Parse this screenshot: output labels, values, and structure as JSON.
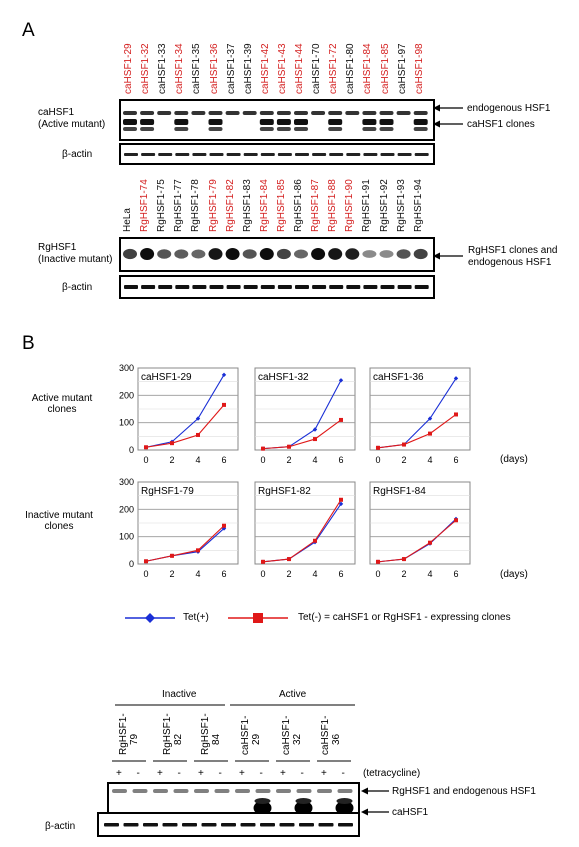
{
  "panel_a": {
    "letter": "A",
    "ca_lanes": [
      {
        "label": "caHSF1-29",
        "red": true
      },
      {
        "label": "caHSF1-32",
        "red": true
      },
      {
        "label": "caHSF1-33",
        "red": false
      },
      {
        "label": "caHSF1-34",
        "red": true
      },
      {
        "label": "caHSF1-35",
        "red": false
      },
      {
        "label": "caHSF1-36",
        "red": true
      },
      {
        "label": "caHSF1-37",
        "red": false
      },
      {
        "label": "caHSF1-39",
        "red": false
      },
      {
        "label": "caHSF1-42",
        "red": true
      },
      {
        "label": "caHSF1-43",
        "red": true
      },
      {
        "label": "caHSF1-44",
        "red": true
      },
      {
        "label": "caHSF1-70",
        "red": false
      },
      {
        "label": "caHSF1-72",
        "red": true
      },
      {
        "label": "caHSF1-80",
        "red": false
      },
      {
        "label": "caHSF1-84",
        "red": true
      },
      {
        "label": "caHSF1-85",
        "red": true
      },
      {
        "label": "caHSF1-97",
        "red": false
      },
      {
        "label": "caHSF1-98",
        "red": true
      }
    ],
    "ca_blot_label_1": "caHSF1",
    "ca_blot_label_2": "(Active mutant)",
    "ca_arrow_endogenous": "endogenous HSF1",
    "ca_arrow_clones": "caHSF1 clones",
    "actin_label": "β-actin",
    "rg_lanes": [
      {
        "label": "HeLa",
        "red": false
      },
      {
        "label": "RgHSF1-74",
        "red": true
      },
      {
        "label": "RgHSF1-75",
        "red": false
      },
      {
        "label": "RgHSF1-77",
        "red": false
      },
      {
        "label": "RgHSF1-78",
        "red": false
      },
      {
        "label": "RgHSF1-79",
        "red": true
      },
      {
        "label": "RgHSF1-82",
        "red": true
      },
      {
        "label": "RgHSF1-83",
        "red": false
      },
      {
        "label": "RgHSF1-84",
        "red": true
      },
      {
        "label": "RgHSF1-85",
        "red": true
      },
      {
        "label": "RgHSF1-86",
        "red": false
      },
      {
        "label": "RgHSF1-87",
        "red": true
      },
      {
        "label": "RgHSF1-88",
        "red": true
      },
      {
        "label": "RgHSF1-90",
        "red": true
      },
      {
        "label": "RgHSF1-91",
        "red": false
      },
      {
        "label": "RgHSF1-92",
        "red": false
      },
      {
        "label": "RgHSF1-93",
        "red": false
      },
      {
        "label": "RgHSF1-94",
        "red": false
      }
    ],
    "rg_blot_label_1": "RgHSF1",
    "rg_blot_label_2": "(Inactive mutant)",
    "rg_arrow_1": "RgHSF1 clones and",
    "rg_arrow_2": "endogenous HSF1"
  },
  "panel_b": {
    "letter": "B",
    "row_label_active_1": "Active mutant",
    "row_label_active_2": "clones",
    "row_label_inactive_1": "Inactive mutant",
    "row_label_inactive_2": "clones",
    "days_label": "(days)",
    "legend_tet_plus": "Tet(+)",
    "legend_tet_minus": "Tet(-) = caHSF1 or RgHSF1 - expressing clones",
    "colors": {
      "tet_plus": "#1a2fd6",
      "tet_minus": "#e01818"
    },
    "x_ticks": [
      "0",
      "2",
      "4",
      "6"
    ],
    "y_ticks": [
      "0",
      "100",
      "200",
      "300"
    ]
  },
  "chart_data": [
    {
      "type": "line",
      "title": "caHSF1-29",
      "x": [
        0,
        2,
        4,
        6
      ],
      "ylim": [
        0,
        300
      ],
      "series": [
        {
          "name": "Tet(+)",
          "values": [
            10,
            30,
            115,
            275
          ]
        },
        {
          "name": "Tet(-) = caHSF1 or RgHSF1 - expressing clones",
          "values": [
            10,
            25,
            55,
            165
          ]
        }
      ]
    },
    {
      "type": "line",
      "title": "caHSF1-32",
      "x": [
        0,
        2,
        4,
        6
      ],
      "ylim": [
        0,
        300
      ],
      "series": [
        {
          "name": "Tet(+)",
          "values": [
            5,
            12,
            75,
            255
          ]
        },
        {
          "name": "Tet(-) = caHSF1 or RgHSF1 - expressing clones",
          "values": [
            5,
            12,
            40,
            110
          ]
        }
      ]
    },
    {
      "type": "line",
      "title": "caHSF1-36",
      "x": [
        0,
        2,
        4,
        6
      ],
      "ylim": [
        0,
        300
      ],
      "series": [
        {
          "name": "Tet(+)",
          "values": [
            8,
            20,
            115,
            262
          ]
        },
        {
          "name": "Tet(-) = caHSF1 or RgHSF1 - expressing clones",
          "values": [
            8,
            20,
            60,
            130
          ]
        }
      ]
    },
    {
      "type": "line",
      "title": "RgHSF1-79",
      "x": [
        0,
        2,
        4,
        6
      ],
      "ylim": [
        0,
        300
      ],
      "series": [
        {
          "name": "Tet(+)",
          "values": [
            10,
            30,
            45,
            130
          ]
        },
        {
          "name": "Tet(-) = caHSF1 or RgHSF1 - expressing clones",
          "values": [
            10,
            30,
            50,
            140
          ]
        }
      ]
    },
    {
      "type": "line",
      "title": "RgHSF1-82",
      "x": [
        0,
        2,
        4,
        6
      ],
      "ylim": [
        0,
        300
      ],
      "series": [
        {
          "name": "Tet(+)",
          "values": [
            8,
            18,
            80,
            220
          ]
        },
        {
          "name": "Tet(-) = caHSF1 or RgHSF1 - expressing clones",
          "values": [
            8,
            18,
            85,
            235
          ]
        }
      ]
    },
    {
      "type": "line",
      "title": "RgHSF1-84",
      "x": [
        0,
        2,
        4,
        6
      ],
      "ylim": [
        0,
        300
      ],
      "series": [
        {
          "name": "Tet(+)",
          "values": [
            8,
            18,
            75,
            165
          ]
        },
        {
          "name": "Tet(-) = caHSF1 or RgHSF1 - expressing clones",
          "values": [
            8,
            18,
            78,
            160
          ]
        }
      ]
    }
  ],
  "panel_c": {
    "group_inactive": "Inactive",
    "group_active": "Active",
    "clones": [
      "RgHSF1-\n79",
      "RgHSF1-\n82",
      "RgHSF1-\n84",
      "caHSF1-\n29",
      "caHSF1-\n32",
      "caHSF1-\n36"
    ],
    "clone_lines": [
      [
        "RgHSF1-",
        "79"
      ],
      [
        "RgHSF1-",
        "82"
      ],
      [
        "RgHSF1-",
        "84"
      ],
      [
        "caHSF1-",
        "29"
      ],
      [
        "caHSF1-",
        "32"
      ],
      [
        "caHSF1-",
        "36"
      ]
    ],
    "tet_signs": [
      "+",
      "-",
      "+",
      "-",
      "+",
      "-",
      "+",
      "-",
      "+",
      "-",
      "+",
      "-"
    ],
    "tetracycline_label": "(tetracycline)",
    "arrow_top": "RgHSF1 and endogenous HSF1",
    "arrow_bottom": "caHSF1",
    "actin_label": "β-actin"
  }
}
